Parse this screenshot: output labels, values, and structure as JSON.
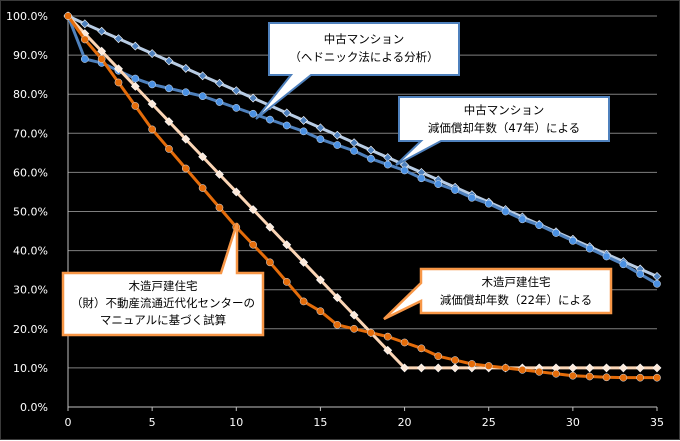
{
  "chart_data": {
    "type": "line",
    "title": "",
    "xlabel": "",
    "ylabel": "",
    "xlim": [
      0,
      35
    ],
    "ylim": [
      0,
      100
    ],
    "grid": "horizontal",
    "legend": "callouts",
    "x_ticks": [
      "0",
      "5",
      "10",
      "15",
      "20",
      "25",
      "30",
      "35"
    ],
    "y_ticks": [
      "0.0%",
      "10.0%",
      "20.0%",
      "30.0%",
      "40.0%",
      "50.0%",
      "60.0%",
      "70.0%",
      "80.0%",
      "90.0%",
      "100.0%"
    ],
    "x": [
      0,
      1,
      2,
      3,
      4,
      5,
      6,
      7,
      8,
      9,
      10,
      11,
      12,
      13,
      14,
      15,
      16,
      17,
      18,
      19,
      20,
      21,
      22,
      23,
      24,
      25,
      26,
      27,
      28,
      29,
      30,
      31,
      32,
      33,
      34,
      35
    ],
    "series": [
      {
        "key": "apt_hedonic",
        "color": "#b8cce4",
        "marker": "diamond",
        "marker_color": "#4f81bd",
        "values": [
          100,
          98,
          96.1,
          94.2,
          92.3,
          90.4,
          88.5,
          86.6,
          84.7,
          82.8,
          80.9,
          79,
          77.1,
          75.2,
          73.3,
          71.4,
          69.5,
          67.6,
          65.7,
          63.8,
          61.9,
          60,
          58.1,
          56.2,
          54.3,
          52.4,
          50.5,
          48.6,
          46.7,
          44.8,
          42.9,
          41,
          39.1,
          37.2,
          35.3,
          33.4
        ]
      },
      {
        "key": "apt_statutory_47y",
        "color": "#4f81bd",
        "marker": "circle",
        "marker_color": "#4a90e2",
        "values": [
          100,
          89,
          88,
          86,
          84,
          82.5,
          81.5,
          80.5,
          79.5,
          78,
          76.5,
          75,
          73.5,
          72,
          70.5,
          68.5,
          67,
          65.5,
          63.5,
          62,
          60.5,
          58.5,
          57,
          55.5,
          53.5,
          52,
          50,
          48,
          46.5,
          44.5,
          42.5,
          40.5,
          38.5,
          36.5,
          34,
          31.5
        ]
      },
      {
        "key": "wood_statutory_22y",
        "color": "#fbd5b5",
        "marker": "diamond",
        "marker_color": "#fde9d9",
        "values": [
          100,
          95.5,
          91,
          86.5,
          82,
          77.5,
          73,
          68.5,
          64,
          59.5,
          55,
          50.5,
          46,
          41.5,
          37,
          32.5,
          28,
          23.5,
          19,
          14.5,
          10,
          10,
          10,
          10,
          10,
          10,
          10,
          10,
          10,
          10,
          10,
          10,
          10,
          10,
          10,
          10
        ]
      },
      {
        "key": "wood_manual",
        "color": "#e46c0a",
        "marker": "circle",
        "marker_color": "#e46c0a",
        "values": [
          100,
          94,
          89,
          83,
          77,
          71,
          66,
          61,
          56,
          51,
          46,
          41.5,
          37,
          32,
          27,
          24.5,
          21,
          20,
          19,
          18,
          16.5,
          15,
          13,
          12,
          11,
          10.5,
          10,
          9.5,
          9,
          8.5,
          8,
          7.8,
          7.6,
          7.5,
          7.5,
          7.5
        ]
      }
    ]
  },
  "callouts": {
    "apt_hedonic": {
      "line1": "中古マンション",
      "line2": "（ヘドニック法による分析）"
    },
    "apt_statutory": {
      "line1": "中古マンション",
      "line2": "減価償却年数（47年）による"
    },
    "wood_manual": {
      "line1": "木造戸建住宅",
      "line2": "（財）不動産流通近代化センターの",
      "line3": "マニュアルに基づく試算"
    },
    "wood_statutory": {
      "line1": "木造戸建住宅",
      "line2": "減価償却年数（22年）による"
    }
  },
  "colors": {
    "background": "#000000",
    "grid": "#7f7f7f",
    "callout_blue_border": "#4f81bd",
    "callout_orange_border": "#f79646"
  }
}
